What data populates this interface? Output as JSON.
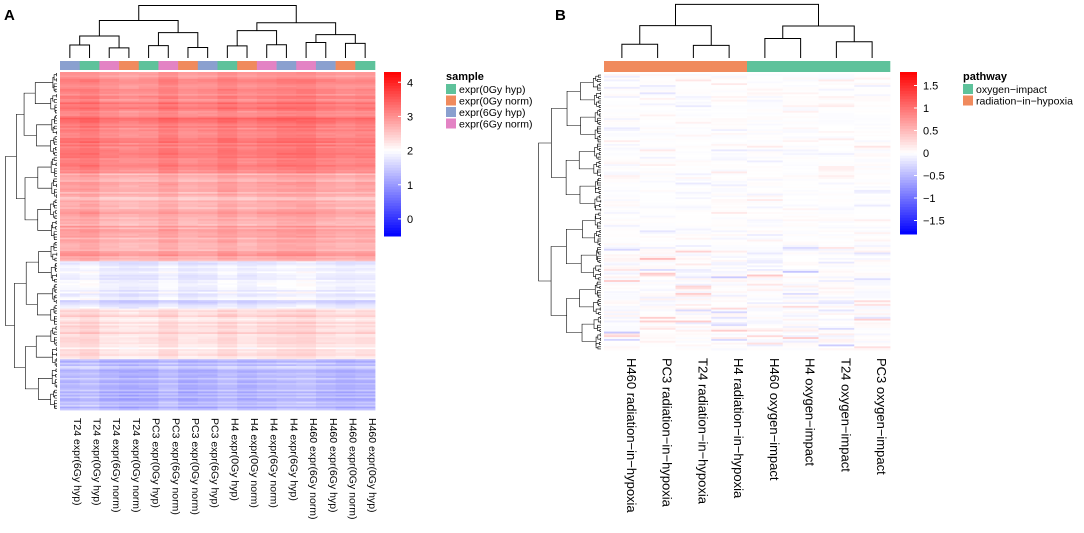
{
  "panels": {
    "a_label": "A",
    "b_label": "B"
  },
  "chart_data": [
    {
      "type": "heatmap",
      "panel": "A",
      "columns": [
        "T24 expr(6Gy hyp)",
        "T24 expr(0Gy hyp)",
        "T24 expr(6Gy norm)",
        "T24 expr(0Gy norm)",
        "PC3 expr(0Gy hyp)",
        "PC3 expr(6Gy norm)",
        "PC3 expr(0Gy norm)",
        "PC3 expr(6Gy hyp)",
        "H4 expr(0Gy hyp)",
        "H4 expr(0Gy norm)",
        "H4 expr(6Gy norm)",
        "H4 expr(6Gy hyp)",
        "H460 expr(6Gy norm)",
        "H460 expr(6Gy hyp)",
        "H460 expr(0Gy norm)",
        "H460 expr(0Gy hyp)"
      ],
      "column_annotation": [
        "expr(6Gy hyp)",
        "expr(0Gy hyp)",
        "expr(6Gy norm)",
        "expr(0Gy norm)",
        "expr(0Gy hyp)",
        "expr(6Gy norm)",
        "expr(0Gy norm)",
        "expr(6Gy hyp)",
        "expr(0Gy hyp)",
        "expr(0Gy norm)",
        "expr(6Gy norm)",
        "expr(6Gy hyp)",
        "expr(6Gy norm)",
        "expr(6Gy hyp)",
        "expr(0Gy norm)",
        "expr(0Gy hyp)"
      ],
      "legend_title": "sample",
      "legend": [
        {
          "label": "expr(0Gy hyp)",
          "color": "#5ec29b"
        },
        {
          "label": "expr(0Gy norm)",
          "color": "#f08a5d"
        },
        {
          "label": "expr(6Gy hyp)",
          "color": "#8aa0cf"
        },
        {
          "label": "expr(6Gy norm)",
          "color": "#e383c4"
        }
      ],
      "colorbar": {
        "ticks": [
          4,
          3,
          2,
          1,
          0
        ],
        "range": [
          -0.5,
          4.3
        ],
        "midpoint": 2,
        "low": "#0000ff",
        "mid": "#ffffff",
        "high": "#ff0000"
      },
      "row_profile": [
        {
          "from": 0.0,
          "to": 0.05,
          "value": 3.0
        },
        {
          "from": 0.05,
          "to": 0.3,
          "value": 3.15
        },
        {
          "from": 0.3,
          "to": 0.56,
          "value": 2.75
        },
        {
          "from": 0.56,
          "to": 0.7,
          "value": 1.8
        },
        {
          "from": 0.7,
          "to": 0.85,
          "value": 2.3
        },
        {
          "from": 0.85,
          "to": 1.0,
          "value": 1.35
        }
      ]
    },
    {
      "type": "heatmap",
      "panel": "B",
      "columns": [
        "H460 radiation−in−hypoxia",
        "PC3 radiation−in−hypoxia",
        "T24 radiation−in−hypoxia",
        "H4 radiation−in−hypoxia",
        "H460 oxygen−impact",
        "H4 oxygen−impact",
        "T24 oxygen−impact",
        "PC3 oxygen−impact"
      ],
      "column_annotation": [
        "radiation−in−hypoxia",
        "radiation−in−hypoxia",
        "radiation−in−hypoxia",
        "radiation−in−hypoxia",
        "oxygen−impact",
        "oxygen−impact",
        "oxygen−impact",
        "oxygen−impact"
      ],
      "legend_title": "pathway",
      "legend": [
        {
          "label": "oxygen−impact",
          "color": "#5ec29b"
        },
        {
          "label": "radiation−in−hypoxia",
          "color": "#f08a5d"
        }
      ],
      "colorbar": {
        "ticks": [
          1.5,
          1,
          0.5,
          0,
          "−0.5",
          "−1",
          "−1.5"
        ],
        "tick_values": [
          1.5,
          1,
          0.5,
          0,
          -0.5,
          -1,
          -1.5
        ],
        "range": [
          -1.8,
          1.8
        ],
        "midpoint": 0,
        "low": "#0000ff",
        "mid": "#ffffff",
        "high": "#ff0000"
      }
    }
  ]
}
